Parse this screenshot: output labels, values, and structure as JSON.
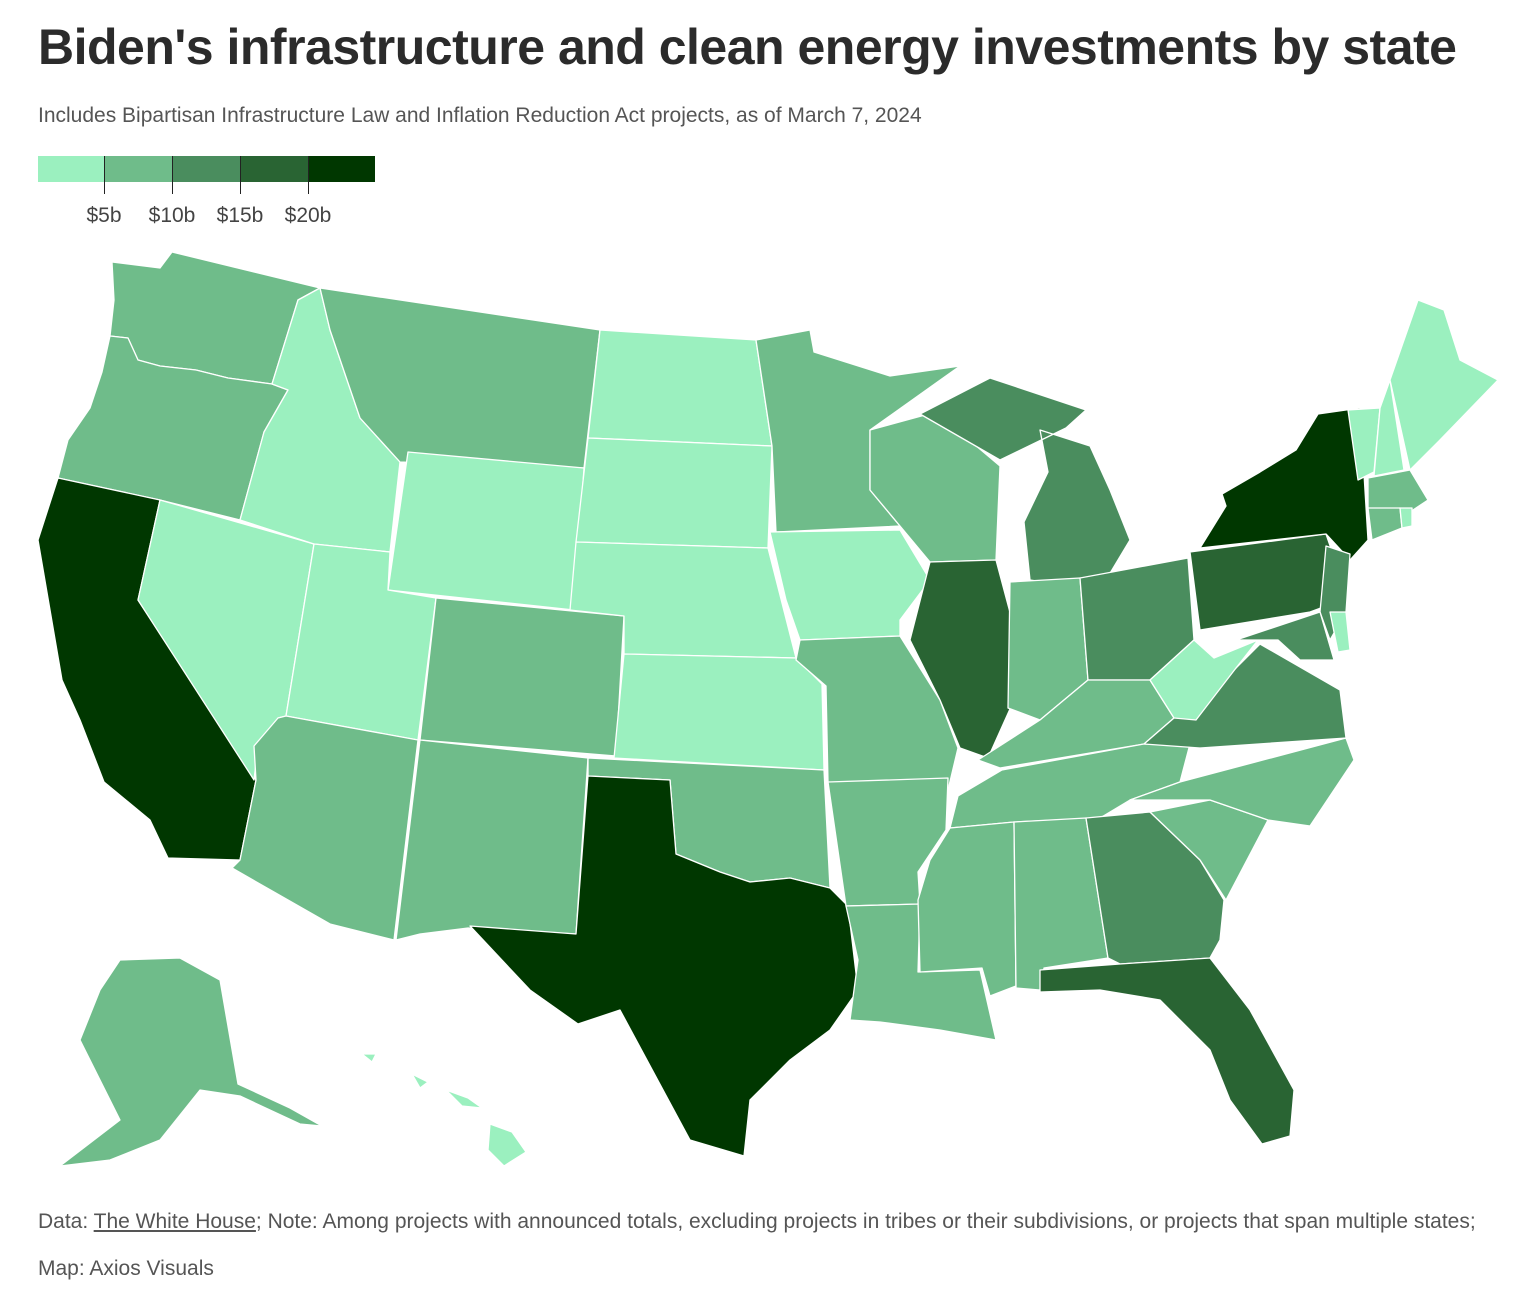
{
  "title": "Biden's infrastructure and clean energy investments by state",
  "subtitle": "Includes Bipartisan Infrastructure Law and Inflation Reduction Act projects, as of March 7, 2024",
  "legend": {
    "colors": [
      "#9bf0bf",
      "#6fbc8a",
      "#4a8d5e",
      "#296433",
      "#003700"
    ],
    "thresholds": [
      "$5b",
      "$10b",
      "$15b",
      "$20b"
    ]
  },
  "footer": {
    "prefix": "Data: ",
    "source": "The White House",
    "note": "; Note: Among projects with announced totals, excluding projects in tribes or their subdivisions, or projects that span multiple states; Map: Axios Visuals"
  },
  "chart_data": {
    "type": "choropleth",
    "title": "Biden's infrastructure and clean energy investments by state",
    "bins": [
      "<$5b",
      "$5b-$10b",
      "$10b-$15b",
      "$15b-$20b",
      ">$20b"
    ],
    "states": {
      "CA": 4,
      "TX": 4,
      "NY": 4,
      "IL": 3,
      "PA": 3,
      "FL": 3,
      "MI": 2,
      "OH": 2,
      "VA": 2,
      "GA": 2,
      "NJ": 2,
      "MD": 2,
      "WA": 1,
      "OR": 1,
      "MT": 1,
      "MN": 1,
      "WI": 1,
      "MO": 1,
      "AR": 1,
      "LA": 1,
      "MS": 1,
      "AL": 1,
      "TN": 1,
      "KY": 1,
      "IN": 1,
      "NC": 1,
      "SC": 1,
      "AZ": 1,
      "NM": 1,
      "CO": 1,
      "OK": 1,
      "MA": 1,
      "CT": 1,
      "AK": 1,
      "NV": 0,
      "ID": 0,
      "UT": 0,
      "WY": 0,
      "ND": 0,
      "SD": 0,
      "NE": 0,
      "KS": 0,
      "IA": 0,
      "WV": 0,
      "ME": 0,
      "VT": 0,
      "NH": 0,
      "RI": 0,
      "DE": 0,
      "HI": 0
    }
  }
}
